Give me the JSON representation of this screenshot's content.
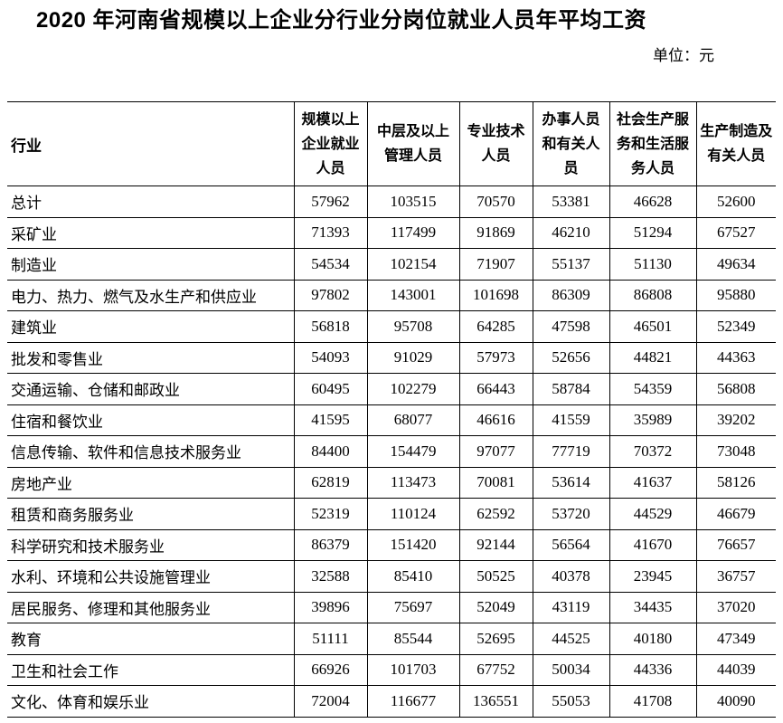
{
  "page": {
    "title": "2020 年河南省规模以上企业分行业分岗位就业人员年平均工资",
    "unit_note": "单位：元"
  },
  "colors": {
    "text": "#000000",
    "background": "#ffffff",
    "border": "#000000"
  },
  "table": {
    "industry_header": "行业",
    "columns": [
      "规模以上\n企业就业\n人员",
      "中层及以上\n管理人员",
      "专业技术\n人员",
      "办事人员\n和有关人\n员",
      "社会生产服\n务和生活服\n务人员",
      "生产制造及\n有关人员"
    ],
    "rows": [
      {
        "industry": "总计",
        "values": [
          57962,
          103515,
          70570,
          53381,
          46628,
          52600
        ]
      },
      {
        "industry": "采矿业",
        "values": [
          71393,
          117499,
          91869,
          46210,
          51294,
          67527
        ]
      },
      {
        "industry": "制造业",
        "values": [
          54534,
          102154,
          71907,
          55137,
          51130,
          49634
        ]
      },
      {
        "industry": "电力、热力、燃气及水生产和供应业",
        "values": [
          97802,
          143001,
          101698,
          86309,
          86808,
          95880
        ]
      },
      {
        "industry": "建筑业",
        "values": [
          56818,
          95708,
          64285,
          47598,
          46501,
          52349
        ]
      },
      {
        "industry": "批发和零售业",
        "values": [
          54093,
          91029,
          57973,
          52656,
          44821,
          44363
        ]
      },
      {
        "industry": "交通运输、仓储和邮政业",
        "values": [
          60495,
          102279,
          66443,
          58784,
          54359,
          56808
        ]
      },
      {
        "industry": "住宿和餐饮业",
        "values": [
          41595,
          68077,
          46616,
          41559,
          35989,
          39202
        ]
      },
      {
        "industry": "信息传输、软件和信息技术服务业",
        "values": [
          84400,
          154479,
          97077,
          77719,
          70372,
          73048
        ]
      },
      {
        "industry": "房地产业",
        "values": [
          62819,
          113473,
          70081,
          53614,
          41637,
          58126
        ]
      },
      {
        "industry": "租赁和商务服务业",
        "values": [
          52319,
          110124,
          62592,
          53720,
          44529,
          46679
        ]
      },
      {
        "industry": "科学研究和技术服务业",
        "values": [
          86379,
          151420,
          92144,
          56564,
          41670,
          76657
        ]
      },
      {
        "industry": "水利、环境和公共设施管理业",
        "values": [
          32588,
          85410,
          50525,
          40378,
          23945,
          36757
        ]
      },
      {
        "industry": "居民服务、修理和其他服务业",
        "values": [
          39896,
          75697,
          52049,
          43119,
          34435,
          37020
        ]
      },
      {
        "industry": "教育",
        "values": [
          51111,
          85544,
          52695,
          44525,
          40180,
          47349
        ]
      },
      {
        "industry": "卫生和社会工作",
        "values": [
          66926,
          101703,
          67752,
          50034,
          44336,
          44039
        ]
      },
      {
        "industry": "文化、体育和娱乐业",
        "values": [
          72004,
          116677,
          136551,
          55053,
          41708,
          40090
        ]
      }
    ]
  }
}
